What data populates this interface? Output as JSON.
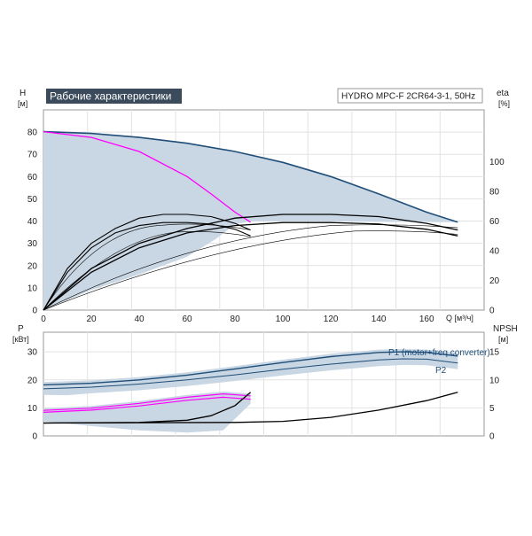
{
  "chart_data": [
    {
      "type": "line",
      "title": "Рабочие характеристики",
      "model": "HYDRO MPC-F 2CR64-3-1, 50Hz",
      "ylabel_left": "H",
      "ylabel_left_unit": "[м]",
      "ylabel_right": "eta",
      "ylabel_right_unit": "[%]",
      "xlabel": "Q [м³/ч]",
      "xlim": [
        0,
        184
      ],
      "ylim_left": [
        0,
        90
      ],
      "ylim_right": [
        0,
        135
      ],
      "x_ticks": [
        "0",
        "20",
        "40",
        "60",
        "80",
        "100",
        "120",
        "140",
        "160"
      ],
      "y_left_ticks": [
        "0",
        "10",
        "20",
        "30",
        "40",
        "50",
        "60",
        "70",
        "80"
      ],
      "y_right_ticks": [
        "0",
        "20",
        "40",
        "60",
        "80",
        "100"
      ],
      "grid": true,
      "colors": {
        "envelope": "#c9d6e3",
        "main_curve": "#1f4e79",
        "single_pump": "#ff00ff",
        "efficiency": "#000000"
      },
      "series": [
        {
          "x": [
            0,
            20,
            40,
            60,
            80,
            100,
            120,
            140,
            160,
            173
          ],
          "y": [
            80.2,
            79.4,
            77.6,
            75.0,
            71.3,
            66.4,
            60.0,
            52.2,
            44.0,
            39.5
          ]
        },
        {
          "x": [
            0,
            20,
            40,
            60,
            70,
            80,
            86.5
          ],
          "y": [
            80.2,
            77.6,
            71.3,
            60.0,
            52.2,
            44.0,
            39.5
          ]
        },
        {
          "x": [
            0,
            20,
            40,
            60,
            80,
            100,
            120,
            140,
            160,
            173
          ],
          "y": [
            0,
            28,
            45,
            55,
            62,
            64.5,
            64.5,
            63,
            58.5,
            54
          ]
        },
        {
          "x": [
            0,
            20,
            40,
            60,
            80,
            100,
            120,
            140,
            160,
            173
          ],
          "y": [
            0,
            25.5,
            42,
            52,
            57,
            59,
            59,
            58,
            54.5,
            50
          ]
        },
        {
          "x": [
            0,
            10,
            20,
            30,
            40,
            50,
            60,
            70,
            80,
            86.5
          ],
          "y": [
            0,
            28,
            45,
            55,
            62,
            64.5,
            64.5,
            63,
            58.5,
            54
          ]
        },
        {
          "x": [
            0,
            10,
            20,
            30,
            40,
            50,
            60,
            70,
            80,
            86.5
          ],
          "y": [
            0,
            25.5,
            42,
            52,
            57,
            59,
            59,
            58,
            54.5,
            50
          ]
        }
      ]
    },
    {
      "type": "line",
      "ylabel_left": "P",
      "ylabel_left_unit": "[кВт]",
      "ylabel_right": "NPSH",
      "ylabel_right_unit": "[м]",
      "xlim": [
        0,
        184
      ],
      "ylim_left": [
        0,
        37
      ],
      "ylim_right": [
        0,
        18.5
      ],
      "y_left_ticks": [
        "0",
        "10",
        "20",
        "30"
      ],
      "y_right_ticks": [
        "0",
        "5",
        "10",
        "15"
      ],
      "grid": true,
      "series": [
        {
          "name": "P1 (motor+freq.converter)",
          "x": [
            0,
            20,
            40,
            60,
            80,
            100,
            120,
            140,
            150,
            160,
            173
          ],
          "y": [
            18.2,
            18.8,
            20.0,
            21.7,
            23.9,
            26.2,
            28.3,
            29.8,
            30.0,
            29.8,
            28.5
          ]
        },
        {
          "name": "P2",
          "x": [
            0,
            20,
            40,
            60,
            80,
            100,
            120,
            140,
            150,
            160,
            173
          ],
          "y": [
            16.8,
            17.4,
            18.5,
            20.0,
            21.8,
            23.8,
            25.6,
            27.1,
            27.5,
            27.4,
            26.0
          ]
        },
        {
          "x": [
            0,
            20,
            40,
            60,
            75,
            86.5
          ],
          "y": [
            9.1,
            9.9,
            11.6,
            13.8,
            15.0,
            14.3
          ]
        },
        {
          "x": [
            0,
            20,
            40,
            60,
            75,
            86.5
          ],
          "y": [
            8.4,
            9.2,
            10.7,
            12.7,
            13.8,
            13.1
          ]
        },
        {
          "x": [
            0,
            40,
            60,
            70,
            80,
            86.5
          ],
          "y": [
            2.3,
            2.4,
            2.8,
            3.6,
            5.4,
            7.8
          ]
        },
        {
          "x": [
            0,
            80,
            100,
            120,
            140,
            160,
            173
          ],
          "y": [
            2.3,
            2.4,
            2.6,
            3.3,
            4.6,
            6.3,
            7.8
          ]
        }
      ]
    }
  ]
}
